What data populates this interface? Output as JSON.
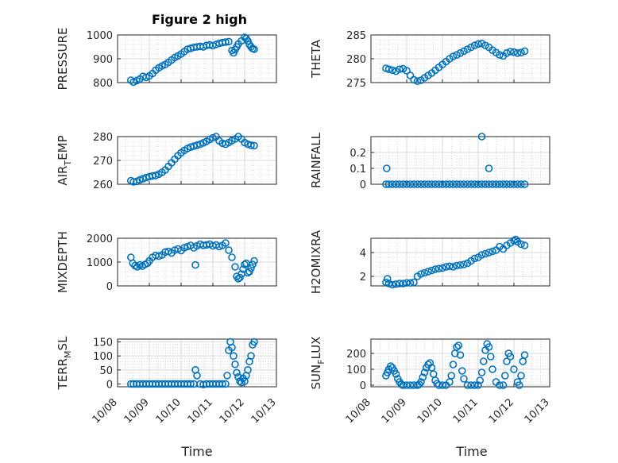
{
  "figure": {
    "title": "Figure 2 high",
    "xlabel": "Time",
    "marker_color": "#0072BD"
  },
  "chart_data": [
    {
      "id": "pressure",
      "type": "scatter",
      "title": "Figure 2 high",
      "xlabel": "",
      "ylabel": "PRESSURE",
      "xlim": [
        0,
        5
      ],
      "ylim": [
        800,
        1000
      ],
      "yticks": [
        800,
        900,
        1000
      ],
      "xticks": [
        0,
        1,
        2,
        3,
        4,
        5
      ],
      "xticklabels": [
        "10/08",
        "10/09",
        "10/10",
        "10/11",
        "10/12",
        "10/13"
      ],
      "show_xticklabels": false,
      "grid": true,
      "minor_grid": true,
      "x": [
        0.42,
        0.5,
        0.6,
        0.7,
        0.8,
        0.9,
        1.0,
        1.1,
        1.2,
        1.3,
        1.4,
        1.5,
        1.6,
        1.7,
        1.8,
        1.9,
        2.0,
        2.1,
        2.2,
        2.3,
        2.4,
        2.5,
        2.6,
        2.7,
        2.8,
        2.9,
        3.0,
        3.1,
        3.2,
        3.3,
        3.4,
        3.5,
        3.6,
        3.65,
        3.7,
        3.75,
        3.8,
        3.9,
        4.0,
        4.05,
        4.1,
        4.15,
        4.2,
        4.25,
        4.3
      ],
      "y": [
        810,
        802,
        808,
        815,
        826,
        822,
        828,
        838,
        852,
        862,
        870,
        876,
        885,
        895,
        905,
        912,
        920,
        930,
        940,
        944,
        948,
        950,
        952,
        950,
        956,
        958,
        955,
        960,
        965,
        968,
        970,
        972,
        935,
        925,
        938,
        950,
        962,
        975,
        990,
        985,
        975,
        960,
        950,
        943,
        940
      ]
    },
    {
      "id": "theta",
      "type": "scatter",
      "xlabel": "",
      "ylabel": "THETA",
      "xlim": [
        0,
        5
      ],
      "ylim": [
        275,
        285
      ],
      "yticks": [
        275,
        280,
        285
      ],
      "xticks": [
        0,
        1,
        2,
        3,
        4,
        5
      ],
      "xticklabels": [
        "10/08",
        "10/09",
        "10/10",
        "10/11",
        "10/12",
        "10/13"
      ],
      "show_xticklabels": false,
      "grid": true,
      "minor_grid": true,
      "x": [
        0.42,
        0.5,
        0.6,
        0.7,
        0.8,
        0.9,
        1.0,
        1.1,
        1.2,
        1.3,
        1.4,
        1.5,
        1.6,
        1.7,
        1.8,
        1.9,
        2.0,
        2.1,
        2.2,
        2.3,
        2.4,
        2.5,
        2.6,
        2.7,
        2.8,
        2.9,
        3.0,
        3.1,
        3.2,
        3.3,
        3.4,
        3.5,
        3.6,
        3.7,
        3.8,
        3.9,
        4.0,
        4.1,
        4.2,
        4.3
      ],
      "y": [
        278,
        277.8,
        277.6,
        277.4,
        277.8,
        277.9,
        277.5,
        276.5,
        275.6,
        275.3,
        275.5,
        276,
        276.5,
        277,
        277.6,
        278.2,
        278.8,
        279.4,
        280,
        280.5,
        280.8,
        281.2,
        281.6,
        282,
        282.4,
        282.8,
        283.1,
        283.2,
        282.8,
        282.4,
        281.8,
        281.3,
        280.8,
        280.6,
        281.2,
        281.5,
        281.4,
        281.2,
        281.3,
        281.6
      ]
    },
    {
      "id": "airtemp",
      "type": "scatter",
      "xlabel": "",
      "ylabel_main": "AIR",
      "ylabel_sub": "T",
      "ylabel_rest": "EMP",
      "xlim": [
        0,
        5
      ],
      "ylim": [
        260,
        280
      ],
      "yticks": [
        260,
        270,
        280
      ],
      "xticks": [
        0,
        1,
        2,
        3,
        4,
        5
      ],
      "xticklabels": [
        "10/08",
        "10/09",
        "10/10",
        "10/11",
        "10/12",
        "10/13"
      ],
      "show_xticklabels": false,
      "grid": true,
      "minor_grid": true,
      "x": [
        0.42,
        0.5,
        0.6,
        0.7,
        0.8,
        0.9,
        1.0,
        1.1,
        1.2,
        1.3,
        1.4,
        1.5,
        1.6,
        1.7,
        1.8,
        1.9,
        2.0,
        2.1,
        2.2,
        2.3,
        2.4,
        2.5,
        2.6,
        2.7,
        2.8,
        2.9,
        3.0,
        3.1,
        3.2,
        3.3,
        3.4,
        3.5,
        3.6,
        3.7,
        3.8,
        3.9,
        4.0,
        4.1,
        4.2,
        4.3
      ],
      "y": [
        261.5,
        261,
        261.2,
        261.8,
        262.3,
        262.8,
        263.2,
        263.5,
        263.7,
        264.2,
        265,
        266,
        267.5,
        269,
        270.5,
        272,
        273.2,
        274.2,
        275,
        275.6,
        276,
        276.4,
        276.8,
        277.4,
        278,
        278.8,
        279.5,
        280,
        278.2,
        277.2,
        276.8,
        277.5,
        278.3,
        279,
        280,
        279,
        277.5,
        276.8,
        276.4,
        276.2
      ]
    },
    {
      "id": "rainfall",
      "type": "scatter",
      "xlabel": "",
      "ylabel": "RAINFALL",
      "xlim": [
        0,
        5
      ],
      "ylim": [
        0,
        0.3
      ],
      "yticks": [
        0,
        0.1,
        0.2
      ],
      "yticklabels": [
        "0",
        "0.1",
        "0.2"
      ],
      "xticks": [
        0,
        1,
        2,
        3,
        4,
        5
      ],
      "xticklabels": [
        "10/08",
        "10/09",
        "10/10",
        "10/11",
        "10/12",
        "10/13"
      ],
      "show_xticklabels": false,
      "grid": true,
      "minor_grid": true,
      "x": [
        0.42,
        0.5,
        0.6,
        0.7,
        0.8,
        0.9,
        1.0,
        1.1,
        1.2,
        1.3,
        1.4,
        1.5,
        1.6,
        1.7,
        1.8,
        1.9,
        2.0,
        2.1,
        2.2,
        2.3,
        2.4,
        2.5,
        2.6,
        2.7,
        2.8,
        2.9,
        3.0,
        3.1,
        3.2,
        3.3,
        3.4,
        3.5,
        3.6,
        3.7,
        3.8,
        3.9,
        4.0,
        4.1,
        4.2,
        4.3,
        0.44,
        3.1,
        3.3
      ],
      "y": [
        0,
        0,
        0,
        0,
        0,
        0,
        0,
        0,
        0,
        0,
        0,
        0,
        0,
        0,
        0,
        0,
        0,
        0,
        0,
        0,
        0,
        0,
        0,
        0,
        0,
        0,
        0,
        0,
        0,
        0,
        0,
        0,
        0,
        0,
        0,
        0,
        0,
        0,
        0,
        0,
        0.1,
        0.3,
        0.1
      ]
    },
    {
      "id": "mixdepth",
      "type": "scatter",
      "xlabel": "",
      "ylabel": "MIXDEPTH",
      "xlim": [
        0,
        5
      ],
      "ylim": [
        0,
        2000
      ],
      "yticks": [
        0,
        1000,
        2000
      ],
      "xticks": [
        0,
        1,
        2,
        3,
        4,
        5
      ],
      "xticklabels": [
        "10/08",
        "10/09",
        "10/10",
        "10/11",
        "10/12",
        "10/13"
      ],
      "show_xticklabels": false,
      "grid": true,
      "minor_grid": true,
      "x": [
        0.42,
        0.48,
        0.55,
        0.62,
        0.7,
        0.78,
        0.86,
        0.94,
        1.0,
        1.1,
        1.2,
        1.3,
        1.4,
        1.5,
        1.6,
        1.7,
        1.8,
        1.9,
        2.0,
        2.1,
        2.2,
        2.3,
        2.4,
        2.45,
        2.5,
        2.6,
        2.7,
        2.8,
        2.9,
        3.0,
        3.1,
        3.2,
        3.3,
        3.4,
        3.5,
        3.6,
        3.7,
        3.75,
        3.8,
        3.85,
        3.9,
        3.95,
        4.0,
        4.05,
        4.1,
        4.15,
        4.2,
        4.25,
        4.3
      ],
      "y": [
        1200,
        950,
        850,
        800,
        880,
        830,
        900,
        950,
        1050,
        1200,
        1280,
        1250,
        1300,
        1420,
        1450,
        1380,
        1500,
        1550,
        1480,
        1600,
        1650,
        1700,
        1600,
        880,
        1680,
        1750,
        1700,
        1720,
        1750,
        1680,
        1720,
        1650,
        1700,
        1800,
        1500,
        1200,
        800,
        400,
        300,
        350,
        500,
        700,
        900,
        950,
        550,
        600,
        750,
        900,
        1050
      ]
    },
    {
      "id": "h2omixra",
      "type": "scatter",
      "xlabel": "",
      "ylabel": "H2OMIXRA",
      "xlim": [
        0,
        5
      ],
      "ylim": [
        1.2,
        5.2
      ],
      "yticks": [
        2,
        4
      ],
      "xticks": [
        0,
        1,
        2,
        3,
        4,
        5
      ],
      "xticklabels": [
        "10/08",
        "10/09",
        "10/10",
        "10/11",
        "10/12",
        "10/13"
      ],
      "show_xticklabels": false,
      "grid": true,
      "minor_grid": true,
      "x": [
        0.42,
        0.46,
        0.5,
        0.6,
        0.7,
        0.8,
        0.9,
        1.0,
        1.1,
        1.2,
        1.3,
        1.4,
        1.5,
        1.6,
        1.7,
        1.8,
        1.9,
        2.0,
        2.1,
        2.2,
        2.3,
        2.4,
        2.5,
        2.6,
        2.7,
        2.8,
        2.9,
        3.0,
        3.1,
        3.2,
        3.3,
        3.4,
        3.5,
        3.6,
        3.7,
        3.8,
        3.9,
        4.0,
        4.05,
        4.1,
        4.2,
        4.3
      ],
      "y": [
        1.5,
        1.8,
        1.4,
        1.3,
        1.35,
        1.4,
        1.4,
        1.45,
        1.45,
        1.5,
        2.0,
        2.2,
        2.3,
        2.4,
        2.5,
        2.6,
        2.65,
        2.7,
        2.8,
        2.85,
        2.8,
        2.9,
        2.95,
        3.0,
        3.1,
        3.3,
        3.5,
        3.6,
        3.8,
        3.9,
        4.0,
        4.1,
        4.2,
        4.5,
        4.3,
        4.6,
        4.8,
        5.0,
        5.1,
        4.9,
        4.7,
        4.6
      ]
    },
    {
      "id": "terrmsl",
      "type": "scatter",
      "xlabel": "",
      "ylabel_main": "TERR",
      "ylabel_sub": "M",
      "ylabel_rest": "SL",
      "xlim": [
        0,
        5
      ],
      "ylim": [
        -10,
        160
      ],
      "yticks": [
        0,
        50,
        100,
        150
      ],
      "xticks": [
        0,
        1,
        2,
        3,
        4,
        5
      ],
      "xticklabels": [
        "10/08",
        "10/09",
        "10/10",
        "10/11",
        "10/12",
        "10/13"
      ],
      "show_xticklabels": true,
      "grid": true,
      "minor_grid": true,
      "x": [
        0.42,
        0.5,
        0.6,
        0.7,
        0.8,
        0.9,
        1.0,
        1.1,
        1.2,
        1.3,
        1.4,
        1.5,
        1.6,
        1.7,
        1.8,
        1.9,
        2.0,
        2.1,
        2.2,
        2.3,
        2.4,
        2.45,
        2.5,
        2.6,
        2.7,
        2.8,
        2.9,
        3.0,
        3.1,
        3.2,
        3.3,
        3.4,
        3.45,
        3.5,
        3.55,
        3.6,
        3.65,
        3.7,
        3.75,
        3.8,
        3.85,
        3.9,
        3.95,
        4.0,
        4.05,
        4.1,
        4.15,
        4.2,
        4.25,
        4.3
      ],
      "y": [
        0,
        0,
        0,
        0,
        0,
        0,
        0,
        0,
        0,
        0,
        0,
        0,
        0,
        0,
        0,
        0,
        0,
        0,
        0,
        0,
        0,
        50,
        30,
        0,
        -2,
        0,
        0,
        0,
        0,
        0,
        0,
        0,
        30,
        120,
        150,
        130,
        100,
        70,
        40,
        25,
        10,
        5,
        20,
        10,
        30,
        50,
        80,
        100,
        140,
        150
      ]
    },
    {
      "id": "sunflux",
      "type": "scatter",
      "xlabel": "",
      "ylabel_main": "SUN",
      "ylabel_sub": "F",
      "ylabel_rest": "LUX",
      "xlim": [
        0,
        5
      ],
      "ylim": [
        -10,
        290
      ],
      "yticks": [
        0,
        100,
        200
      ],
      "xticks": [
        0,
        1,
        2,
        3,
        4,
        5
      ],
      "xticklabels": [
        "10/08",
        "10/09",
        "10/10",
        "10/11",
        "10/12",
        "10/13"
      ],
      "show_xticklabels": true,
      "grid": true,
      "minor_grid": true,
      "x": [
        0.42,
        0.46,
        0.5,
        0.55,
        0.6,
        0.65,
        0.7,
        0.75,
        0.8,
        0.85,
        0.9,
        1.0,
        1.1,
        1.2,
        1.3,
        1.35,
        1.4,
        1.45,
        1.5,
        1.55,
        1.6,
        1.65,
        1.7,
        1.75,
        1.8,
        1.85,
        1.9,
        2.0,
        2.1,
        2.2,
        2.25,
        2.3,
        2.35,
        2.4,
        2.45,
        2.5,
        2.55,
        2.6,
        2.7,
        2.8,
        2.9,
        3.0,
        3.05,
        3.1,
        3.15,
        3.2,
        3.25,
        3.3,
        3.35,
        3.4,
        3.5,
        3.6,
        3.7,
        3.75,
        3.8,
        3.85,
        3.9,
        4.0,
        4.1,
        4.15,
        4.2,
        4.25,
        4.3
      ],
      "y": [
        60,
        80,
        100,
        120,
        110,
        90,
        70,
        40,
        20,
        5,
        0,
        0,
        0,
        0,
        0,
        5,
        20,
        50,
        80,
        110,
        130,
        140,
        110,
        70,
        30,
        10,
        0,
        0,
        0,
        20,
        60,
        130,
        200,
        240,
        250,
        190,
        90,
        40,
        0,
        0,
        0,
        0,
        30,
        80,
        150,
        220,
        260,
        240,
        180,
        100,
        20,
        0,
        0,
        60,
        150,
        200,
        180,
        100,
        20,
        0,
        60,
        150,
        190
      ]
    }
  ]
}
